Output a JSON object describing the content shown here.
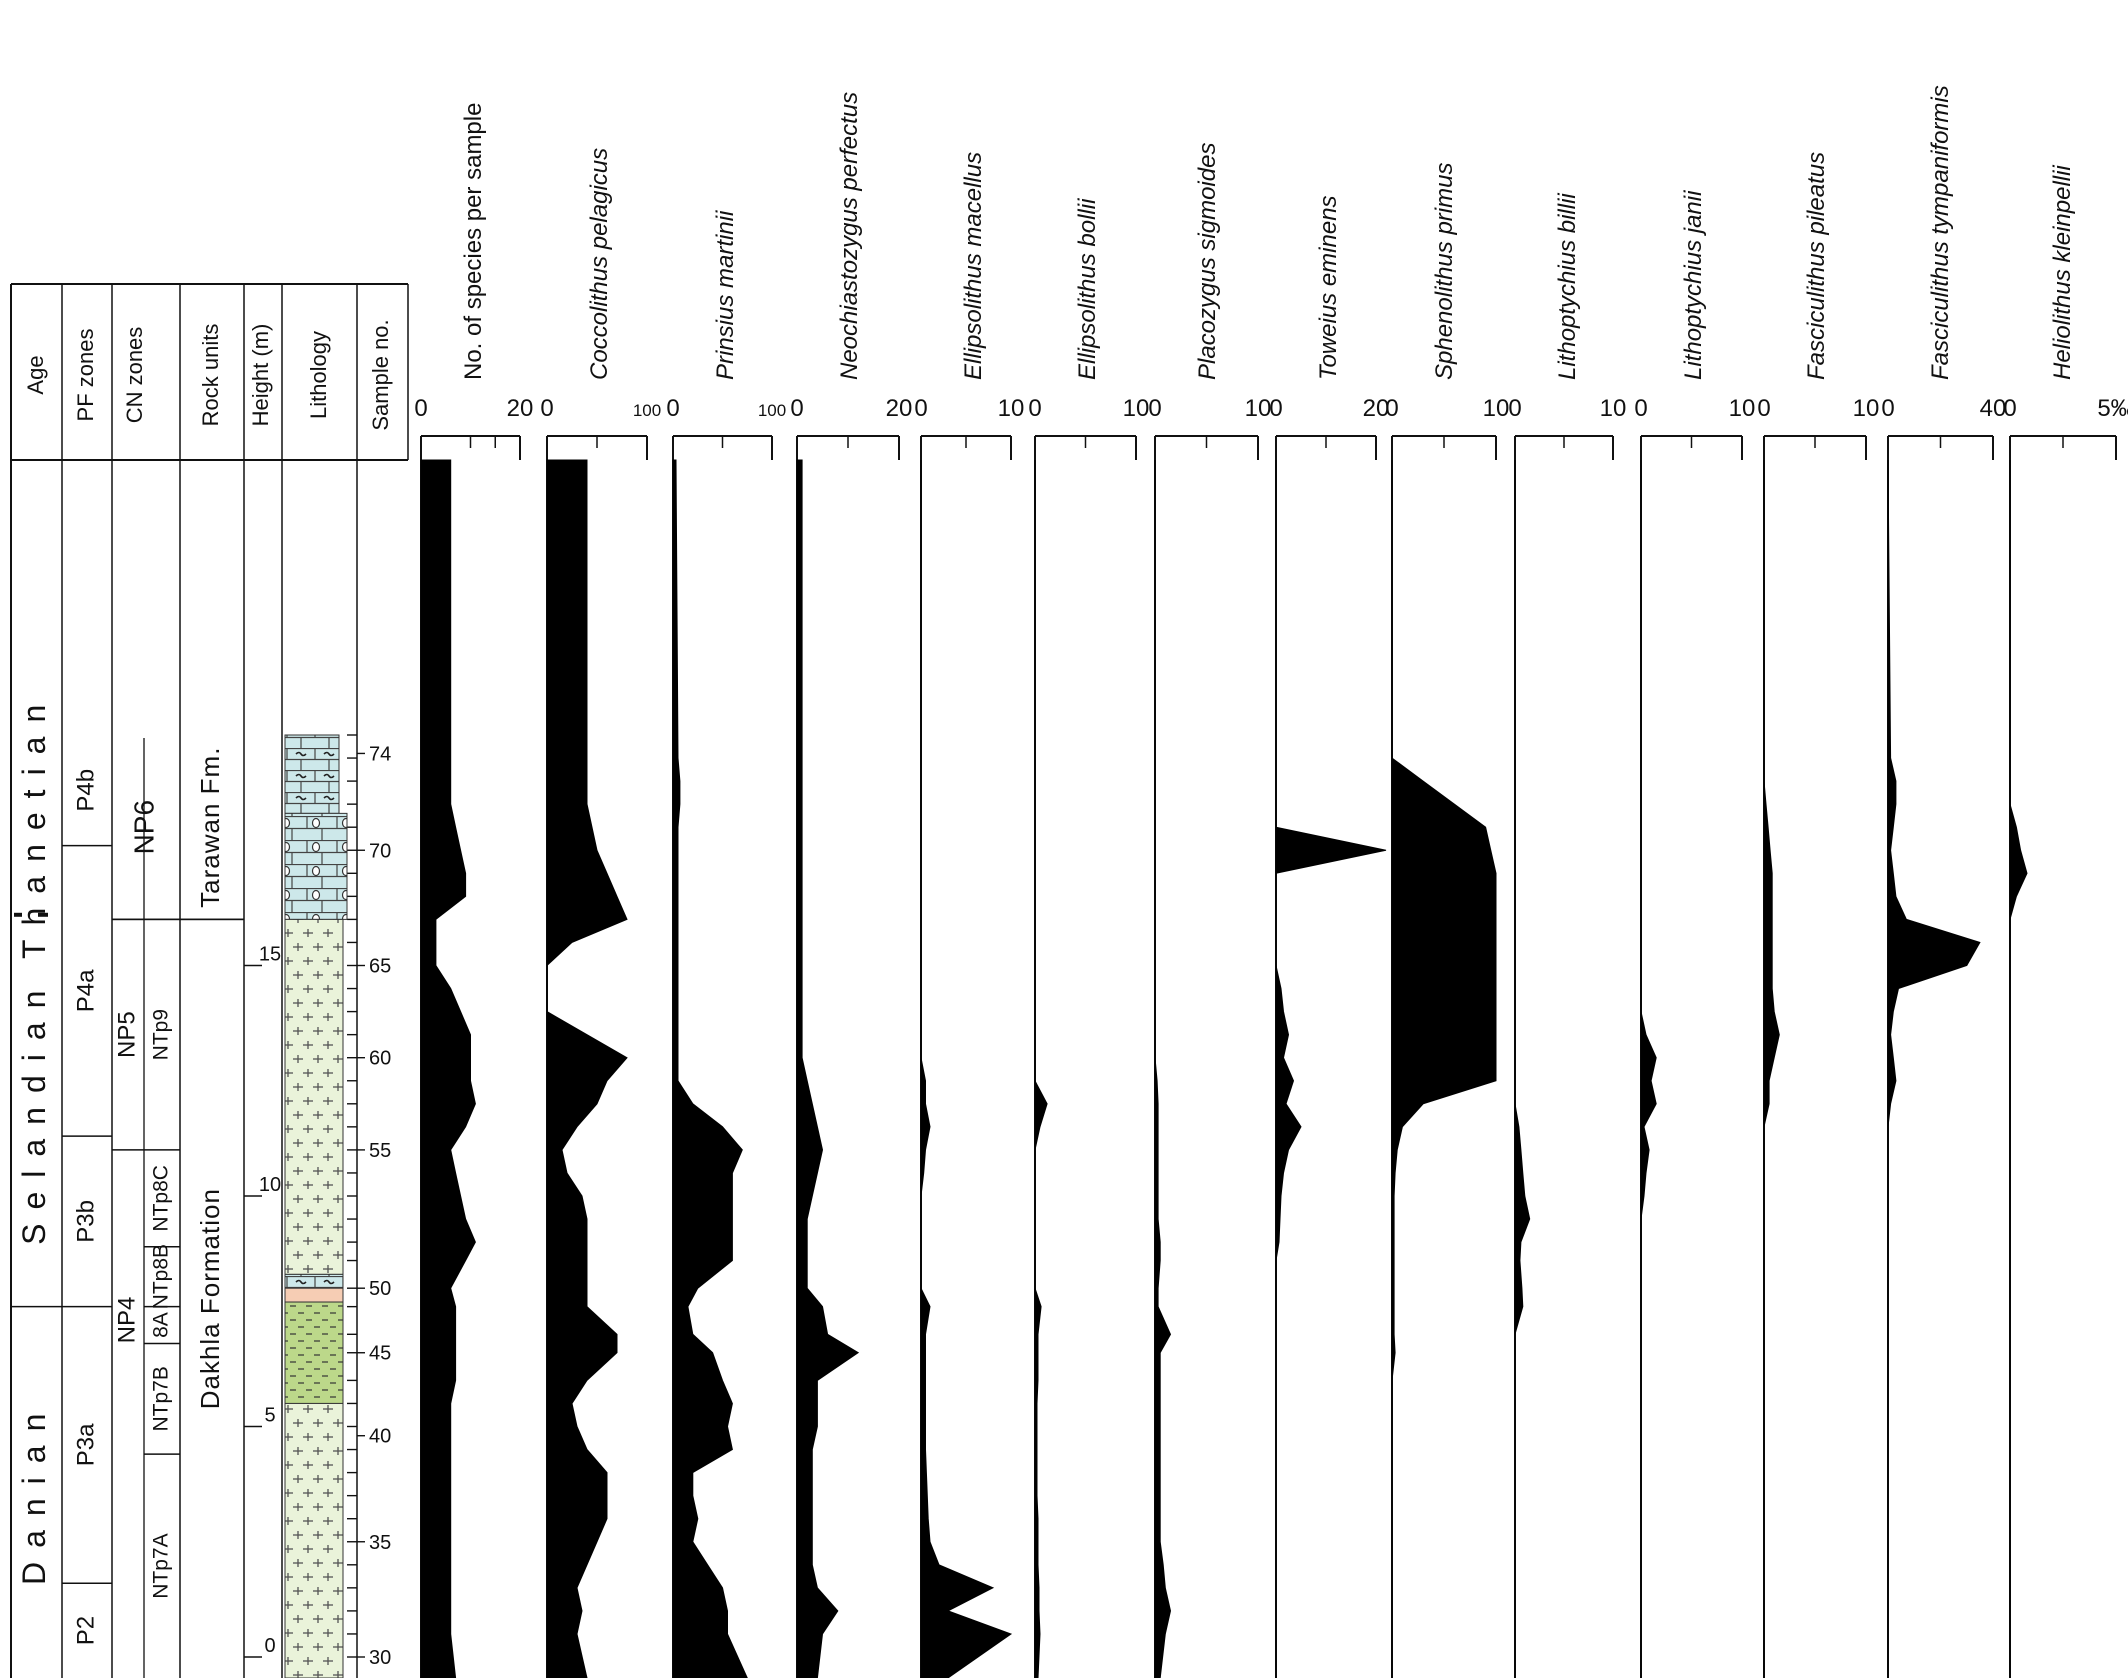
{
  "chart_data": {
    "type": "area",
    "header_columns": [
      "Age",
      "PF zones",
      "CN zones",
      "Rock units",
      "Height (m)",
      "Lithology",
      "Sample no."
    ],
    "ages": [
      {
        "label": "Thanetian",
        "from": 16.1,
        "to": 20
      },
      {
        "label": "Selandian",
        "from": 7.6,
        "to": 16.1
      },
      {
        "label": "Danian",
        "from": -1,
        "to": 7.6
      }
    ],
    "pf_zones": [
      {
        "label": "P4b",
        "from": 17.6,
        "to": 20
      },
      {
        "label": "P4a",
        "from": 11.3,
        "to": 17.6
      },
      {
        "label": "P3b",
        "from": 7.6,
        "to": 11.3
      },
      {
        "label": "P3a",
        "from": 1.6,
        "to": 7.6
      },
      {
        "label": "P2",
        "from": -1,
        "to": 1.6
      }
    ],
    "cn_zones": [
      {
        "label": "NP6",
        "from": 16.0,
        "to": 20
      },
      {
        "label": "NP5",
        "from": 11.0,
        "to": 16.0
      },
      {
        "label": "NP4",
        "from": -1,
        "to": 11.0
      }
    ],
    "ntp_zones": [
      {
        "label": "NTp9",
        "from": 11.0,
        "to": 16.0
      },
      {
        "label": "NTp8C",
        "from": 8.9,
        "to": 11.0
      },
      {
        "label": "NTp8B",
        "from": 7.6,
        "to": 8.9
      },
      {
        "label": "8A",
        "from": 6.8,
        "to": 7.6
      },
      {
        "label": "NTp7B",
        "from": 4.4,
        "to": 6.8
      },
      {
        "label": "NTp7A",
        "from": -1,
        "to": 4.4
      }
    ],
    "rock_units": [
      {
        "label": "Tarawan  Fm.",
        "from": 16.0,
        "to": 20
      },
      {
        "label": "Dakhla  Formation",
        "from": -1,
        "to": 16.0
      }
    ],
    "lithology": [
      {
        "type": "marly-limestone",
        "from": 18.3,
        "to": 20
      },
      {
        "type": "nodular-limestone",
        "from": 16.0,
        "to": 18.3
      },
      {
        "type": "marl",
        "from": 8.3,
        "to": 16.0
      },
      {
        "type": "marly-limestone",
        "from": 8.0,
        "to": 8.3
      },
      {
        "type": "pink-bed",
        "from": 7.7,
        "to": 8.0
      },
      {
        "type": "shale",
        "from": 5.5,
        "to": 7.7
      },
      {
        "type": "marl",
        "from": -1,
        "to": 5.5
      }
    ],
    "height_ticks": [
      "0",
      "5",
      "10",
      "15"
    ],
    "sample_ticks": [
      {
        "label": "30",
        "h": 0.0
      },
      {
        "label": "35",
        "h": 2.5
      },
      {
        "label": "40",
        "h": 4.8
      },
      {
        "label": "45",
        "h": 6.6
      },
      {
        "label": "50",
        "h": 8.0
      },
      {
        "label": "55",
        "h": 11.0
      },
      {
        "label": "60",
        "h": 13.0
      },
      {
        "label": "65",
        "h": 15.0
      },
      {
        "label": "70",
        "h": 17.5
      },
      {
        "label": "74",
        "h": 19.6
      }
    ],
    "sample_heights": [
      0,
      0.5,
      1.0,
      1.5,
      2.0,
      2.5,
      3.0,
      3.5,
      4.0,
      4.5,
      5.0,
      5.5,
      6.0,
      6.6,
      7.0,
      7.6,
      8.0,
      8.6,
      9.0,
      9.5,
      10.0,
      10.5,
      11.0,
      11.5,
      12.0,
      12.5,
      13.0,
      13.5,
      14.0,
      14.5,
      15.0,
      15.5,
      16.0,
      16.5,
      17.0,
      17.5,
      18.0,
      18.5,
      19.0,
      19.5,
      20.0
    ],
    "series": [
      {
        "name": "No. of species per sample",
        "ticks": [
          "0",
          "20"
        ],
        "max": 20,
        "values": [
          7,
          6,
          6,
          6,
          6,
          6,
          6,
          6,
          6,
          6,
          6,
          6,
          7,
          7,
          7,
          7,
          6,
          9,
          11,
          9,
          8,
          7,
          6,
          9,
          11,
          10,
          10,
          10,
          8,
          6,
          3,
          3,
          3,
          9,
          9,
          8,
          7,
          6,
          6,
          6,
          6
        ]
      },
      {
        "name": "Coccolithus pelagicus",
        "ticks": [
          "0",
          "100"
        ],
        "max": 100,
        "values": [
          40,
          30,
          35,
          30,
          40,
          50,
          60,
          60,
          60,
          40,
          30,
          25,
          40,
          70,
          70,
          40,
          40,
          40,
          40,
          40,
          35,
          20,
          15,
          30,
          50,
          60,
          80,
          40,
          0,
          0,
          0,
          25,
          80,
          70,
          60,
          50,
          45,
          40,
          40,
          40,
          40
        ]
      },
      {
        "name": "Prinsius martinii",
        "ticks": [
          "0",
          "100"
        ],
        "max": 100,
        "values": [
          75,
          55,
          55,
          50,
          35,
          20,
          25,
          20,
          20,
          60,
          55,
          60,
          50,
          40,
          20,
          15,
          25,
          60,
          60,
          60,
          60,
          60,
          70,
          50,
          20,
          5,
          5,
          5,
          5,
          5,
          5,
          5,
          5,
          5,
          5,
          5,
          5,
          7,
          7,
          5,
          3
        ]
      },
      {
        "name": "Neochiastozygus perfectus",
        "ticks": [
          "0",
          "20"
        ],
        "max": 20,
        "values": [
          4,
          5,
          8,
          4,
          3,
          3,
          3,
          3,
          3,
          3,
          4,
          4,
          4,
          12,
          6,
          5,
          2,
          2,
          2,
          2,
          3,
          4,
          5,
          4,
          3,
          2,
          1,
          1,
          1,
          1,
          1,
          1,
          1,
          1,
          1,
          1,
          1,
          1,
          1,
          1,
          1
        ]
      },
      {
        "name": "Ellipsolithus macellus",
        "ticks": [
          "0",
          "10"
        ],
        "max": 10,
        "values": [
          3,
          10,
          3,
          8,
          2,
          1,
          0.8,
          0.7,
          0.6,
          0.5,
          0.5,
          0.5,
          0.5,
          0.5,
          0.5,
          1,
          0,
          0,
          0,
          0,
          0,
          0.3,
          0.5,
          1,
          0.5,
          0.5,
          0,
          0,
          0,
          0,
          0,
          0,
          0,
          0,
          0,
          0,
          0,
          0,
          0,
          0,
          0
        ]
      },
      {
        "name": "Ellipsolithus bollii",
        "ticks": [
          "0",
          "10"
        ],
        "max": 10,
        "values": [
          0.3,
          0.5,
          0.4,
          0.4,
          0.3,
          0.3,
          0.3,
          0.2,
          0.2,
          0.2,
          0.2,
          0.2,
          0.3,
          0.3,
          0.3,
          0.6,
          0,
          0,
          0,
          0,
          0,
          0,
          0,
          0.5,
          1.2,
          0,
          0,
          0,
          0,
          0,
          0,
          0,
          0,
          0,
          0,
          0,
          0,
          0,
          0,
          0,
          0
        ]
      },
      {
        "name": "Placozygus sigmoides",
        "ticks": [
          "0",
          "10"
        ],
        "max": 10,
        "values": [
          0.5,
          1,
          1.5,
          1,
          0.8,
          0.5,
          0.5,
          0.5,
          0.5,
          0.5,
          0.5,
          0.5,
          0.5,
          0.5,
          1.5,
          0.3,
          0.3,
          0.5,
          0.5,
          0.3,
          0.3,
          0.3,
          0.3,
          0.3,
          0.3,
          0.2,
          0,
          0,
          0,
          0,
          0,
          0,
          0,
          0,
          0,
          0,
          0,
          0,
          0,
          0,
          0
        ]
      },
      {
        "name": "Toweius eminens",
        "ticks": [
          "0",
          "20"
        ],
        "max": 20,
        "values": [
          0,
          0,
          0,
          0,
          0,
          0,
          0,
          0,
          0,
          0,
          0,
          0,
          0,
          0,
          0,
          0,
          0,
          0,
          0.6,
          0.8,
          1,
          1.5,
          2.5,
          5,
          2,
          3.5,
          1.5,
          2.5,
          1.5,
          1,
          0,
          0,
          0,
          0,
          0,
          22,
          0,
          0,
          0,
          0,
          0
        ]
      },
      {
        "name": "Sphenolithus primus",
        "ticks": [
          "0",
          "10"
        ],
        "max": 10,
        "values": [
          0,
          0,
          0,
          0,
          0,
          0,
          0,
          0,
          0,
          0,
          0,
          0,
          0,
          0.3,
          0.2,
          0.2,
          0.2,
          0.2,
          0.2,
          0.2,
          0.2,
          0.3,
          0.5,
          1,
          3,
          10,
          10,
          10,
          10,
          10,
          10,
          10,
          10,
          10,
          10,
          9.5,
          9,
          6,
          3,
          0,
          0
        ]
      },
      {
        "name": "Lithoptychius billii",
        "ticks": [
          "0",
          "10"
        ],
        "max": 10,
        "values": [
          0,
          0,
          0,
          0,
          0,
          0,
          0,
          0,
          0,
          0,
          0,
          0,
          0,
          0,
          0,
          0.8,
          0.7,
          0.5,
          0.6,
          1.5,
          1,
          0.8,
          0.6,
          0.4,
          0,
          0,
          0,
          0,
          0,
          0,
          0,
          0,
          0,
          0,
          0,
          0,
          0,
          0,
          0,
          0,
          0
        ]
      },
      {
        "name": "Lithoptychius janii",
        "ticks": [
          "0",
          "10"
        ],
        "max": 10,
        "values": [
          0,
          0,
          0,
          0,
          0,
          0,
          0,
          0,
          0,
          0,
          0,
          0,
          0,
          0,
          0,
          0,
          0,
          0,
          0,
          0,
          0.3,
          0.5,
          0.8,
          0.3,
          1.5,
          1,
          1.5,
          0.5,
          0,
          0,
          0,
          0,
          0,
          0,
          0,
          0,
          0,
          0,
          0,
          0,
          0
        ]
      },
      {
        "name": "Fasciculithus pileatus",
        "ticks": [
          "0",
          "10"
        ],
        "max": 10,
        "values": [
          0,
          0,
          0,
          0,
          0,
          0,
          0,
          0,
          0,
          0,
          0,
          0,
          0,
          0,
          0,
          0,
          0,
          0,
          0,
          0,
          0,
          0,
          0,
          0,
          0.5,
          0.5,
          1,
          1.5,
          1,
          0.8,
          0.8,
          0.8,
          0.8,
          0.8,
          0.8,
          0.6,
          0.4,
          0.2,
          0,
          0,
          0
        ]
      },
      {
        "name": "Fasciculithus tympaniformis",
        "ticks": [
          "0",
          "40"
        ],
        "max": 40,
        "values": [
          0,
          0,
          0,
          0,
          0,
          0,
          0,
          0,
          0,
          0,
          0,
          0,
          0,
          0,
          0,
          0,
          0,
          0,
          0,
          0,
          0,
          0,
          0,
          0,
          1,
          3,
          2,
          1,
          2,
          4,
          30,
          35,
          7,
          3,
          2,
          1,
          2,
          3,
          3,
          1,
          0
        ]
      },
      {
        "name": "Heliolithus kleinpellii",
        "ticks": [
          "0",
          "5‰"
        ],
        "max": 5,
        "values": [
          0,
          0,
          0,
          0,
          0,
          0,
          0,
          0,
          0,
          0,
          0,
          0,
          0,
          0,
          0,
          0,
          0,
          0,
          0,
          0,
          0,
          0,
          0,
          0,
          0,
          0,
          0,
          0,
          0,
          0,
          0,
          0,
          0,
          0.3,
          0.8,
          0.5,
          0.3,
          0,
          0,
          0,
          0
        ]
      }
    ]
  }
}
